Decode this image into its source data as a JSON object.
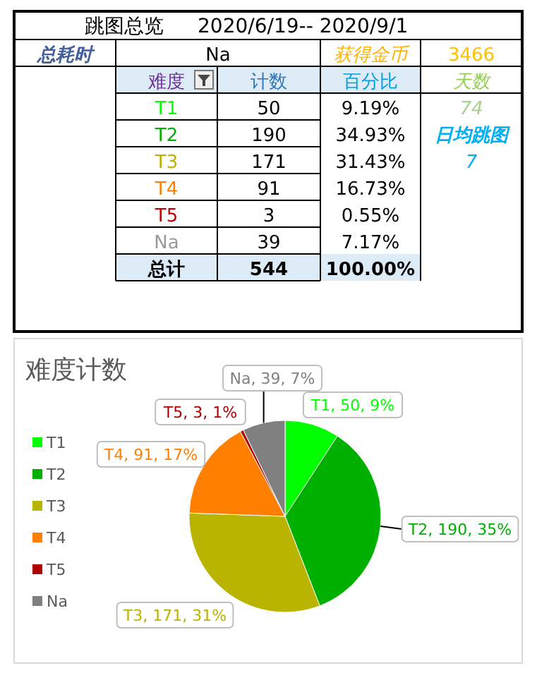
{
  "chart_data": [
    {
      "type": "other",
      "title": "跳图总览",
      "subtitle": "2020/6/19-- 2020/9/1",
      "annotations": [
        "总耗时",
        "Na",
        "获得金币",
        "3466",
        "难度",
        "计数",
        "百分比",
        "天数",
        "T1",
        "50",
        "9.19%",
        "74",
        "T2",
        "190",
        "34.93%",
        "日均跳图",
        "T3",
        "171",
        "31.43%",
        "7",
        "T4",
        "91",
        "16.73%",
        "T5",
        "3",
        "0.55%",
        "Na",
        "39",
        "7.17%",
        "总计",
        "544",
        "100.00%"
      ]
    },
    {
      "type": "pie",
      "title": "难度计数",
      "categories": [
        "T1",
        "T2",
        "T3",
        "T4",
        "T5",
        "Na"
      ],
      "values": [
        50,
        190,
        171,
        91,
        3,
        39
      ],
      "colors": [
        "#00ff00",
        "#00b000",
        "#b8b400",
        "#ff8000",
        "#b00000",
        "#808080"
      ],
      "value_labels": [
        "T1, 50, 9%",
        "T2, 190, 35%",
        "T3, 171, 31%",
        "T4, 91, 17%",
        "T5, 3, 1%",
        "Na, 39, 7%"
      ],
      "legend": "left"
    }
  ]
}
